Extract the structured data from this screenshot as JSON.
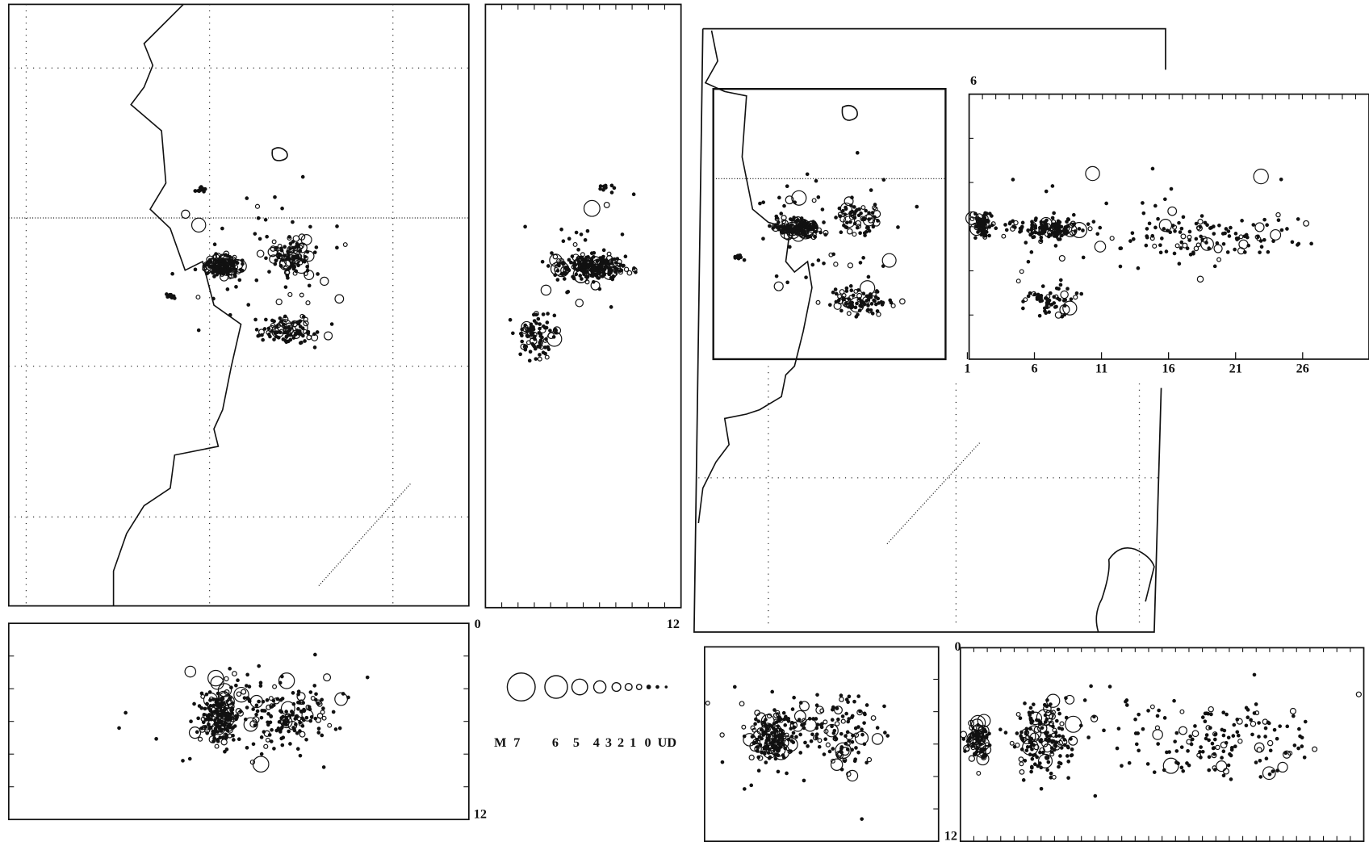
{
  "depth_labels": {
    "vertical_section_start": 0,
    "vertical_section_end": 12,
    "lower_left_end": 12,
    "lower_right_start": 0,
    "lower_right_end": 12
  },
  "legend": {
    "prefix": "M",
    "magnitudes": [
      "7",
      "6",
      "5",
      "4",
      "3",
      "2",
      "1",
      "0"
    ],
    "undetermined": "UD"
  },
  "time_panel": {
    "corner_label": "6",
    "ticks": [
      1,
      6,
      11,
      16,
      21,
      26
    ]
  }
}
